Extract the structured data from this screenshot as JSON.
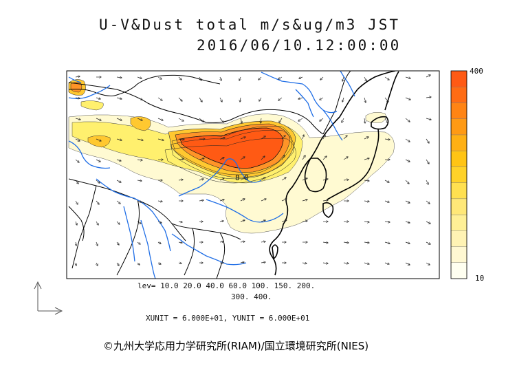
{
  "title": {
    "line1": "U-V&Dust total m/s&ug/m3 JST",
    "line2": "2016/06/10.12:00:00"
  },
  "legend": {
    "levels_line1": "lev= 10.0 20.0 40.0 60.0 100. 150. 200.",
    "levels_line2": "300. 400.",
    "max_label": "400",
    "min_label": "10"
  },
  "units_text": "XUNIT = 6.000E+01, YUNIT = 6.000E+01",
  "contour_label": "8 0",
  "credit": "©九州大学応用力学研究所(RIAM)/国立環境研究所(NIES)",
  "colors": {
    "high": "#ff5a14",
    "orange": "#ff9428",
    "gold": "#ffc830",
    "yellow": "#fff06e",
    "pale": "#fffad2",
    "rivers": "#1f6ee6",
    "coast": "#000000"
  },
  "colorbar": [
    "#fffff0",
    "#fff8d2",
    "#fff3b4",
    "#fff096",
    "#ffe878",
    "#ffe050",
    "#ffd228",
    "#ffc414",
    "#ffb014",
    "#ff9a14",
    "#ff8414",
    "#ff6c14",
    "#ff5a14"
  ]
}
